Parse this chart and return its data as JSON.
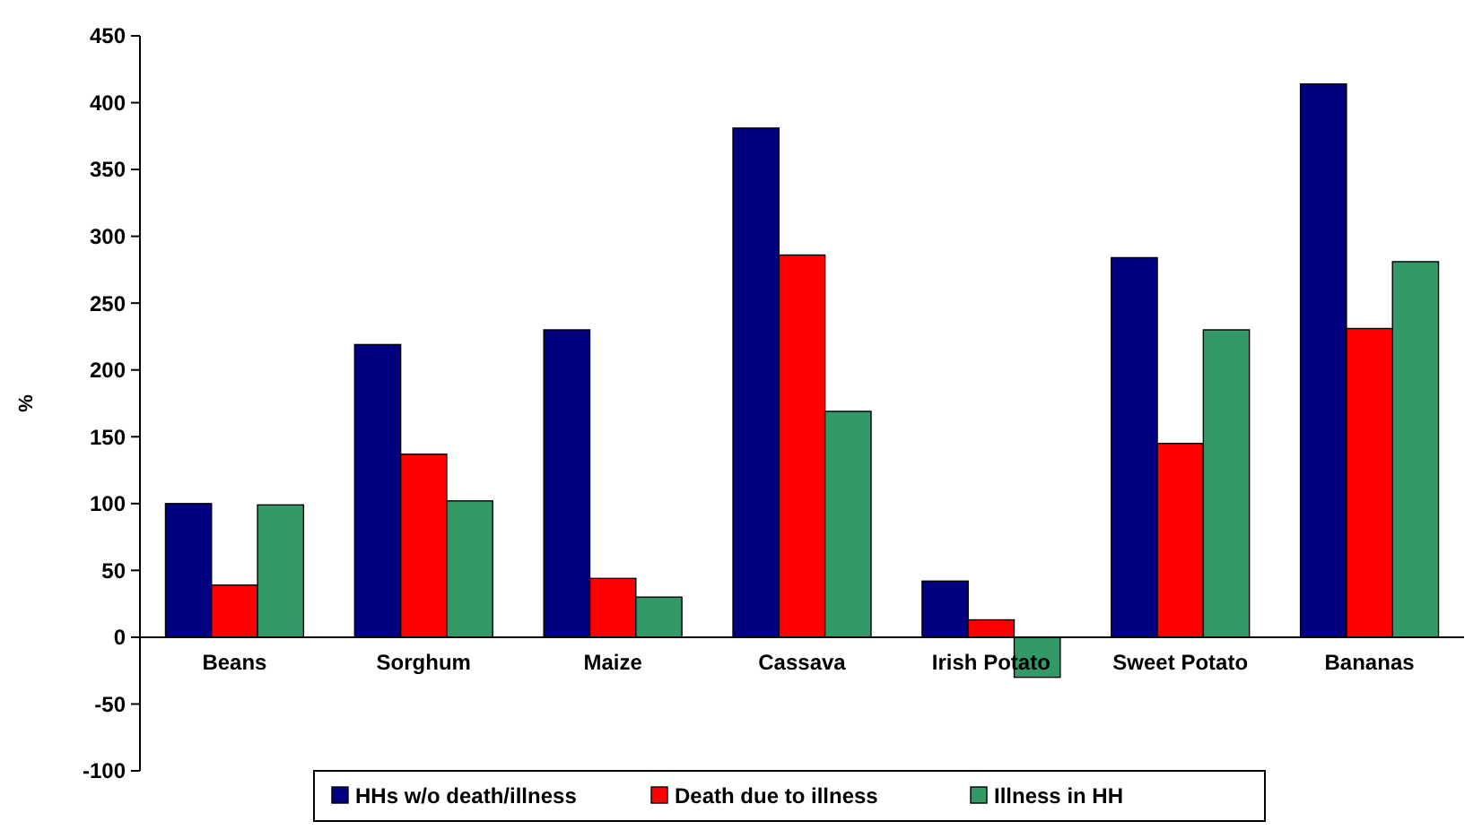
{
  "chart_data": {
    "type": "bar",
    "ylabel": "%",
    "categories": [
      "Beans",
      "Sorghum",
      "Maize",
      "Cassava",
      "Irish Potato",
      "Sweet Potato",
      "Bananas"
    ],
    "series": [
      {
        "name": "HHs w/o death/illness",
        "color": "#000080",
        "values": [
          100,
          219,
          230,
          381,
          42,
          284,
          414
        ]
      },
      {
        "name": "Death due to illness",
        "color": "#ff0000",
        "values": [
          39,
          137,
          44,
          286,
          13,
          145,
          231
        ]
      },
      {
        "name": "Illness in HH",
        "color": "#339966",
        "values": [
          99,
          102,
          30,
          169,
          -30,
          230,
          281
        ]
      }
    ],
    "ylim": [
      -100,
      450
    ],
    "yticks": [
      -100,
      -50,
      0,
      50,
      100,
      150,
      200,
      250,
      300,
      350,
      400,
      450
    ],
    "grid": false,
    "legend": "bottom"
  }
}
